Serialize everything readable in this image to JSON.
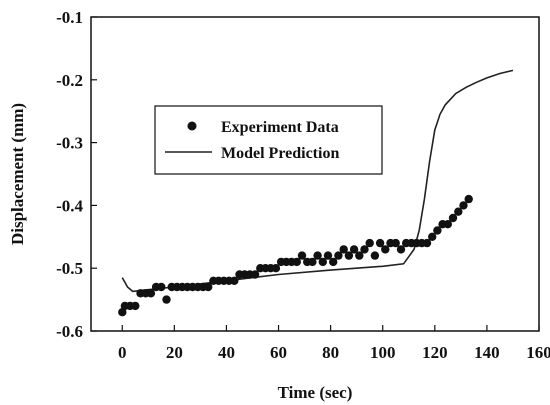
{
  "chart_data": {
    "type": "scatter",
    "title": "",
    "xlabel": "Time (sec)",
    "ylabel": "Displacement (mm)",
    "xlim": [
      -12,
      160
    ],
    "ylim": [
      -0.6,
      -0.1
    ],
    "x_ticks": [
      0,
      20,
      40,
      60,
      80,
      100,
      120,
      140,
      160
    ],
    "x_tick_labels": [
      "0",
      "20",
      "40",
      "60",
      "80",
      "100",
      "120",
      "140",
      "160"
    ],
    "y_ticks": [
      -0.1,
      -0.2,
      -0.3,
      -0.4,
      -0.5,
      -0.6
    ],
    "y_tick_labels": [
      "-0.1",
      "-0.2",
      "-0.3",
      "-0.4",
      "-0.5",
      "-0.6"
    ],
    "grid": false,
    "legend_position": "center-left",
    "series": [
      {
        "name": "Experiment Data",
        "kind": "scatter",
        "color": "#111111",
        "x": [
          0,
          1,
          3,
          5,
          7,
          9,
          11,
          13,
          15,
          17,
          19,
          21,
          23,
          25,
          27,
          29,
          31,
          33,
          35,
          37,
          39,
          41,
          43,
          45,
          47,
          49,
          51,
          53,
          55,
          57,
          59,
          61,
          63,
          65,
          67,
          69,
          71,
          73,
          75,
          77,
          79,
          81,
          83,
          85,
          87,
          89,
          91,
          93,
          95,
          97,
          99,
          101,
          103,
          105,
          107,
          109,
          111,
          113,
          115,
          117,
          119,
          121,
          123,
          125,
          127,
          129,
          131,
          133
        ],
        "y": [
          -0.57,
          -0.56,
          -0.56,
          -0.56,
          -0.54,
          -0.54,
          -0.54,
          -0.53,
          -0.53,
          -0.55,
          -0.53,
          -0.53,
          -0.53,
          -0.53,
          -0.53,
          -0.53,
          -0.53,
          -0.53,
          -0.52,
          -0.52,
          -0.52,
          -0.52,
          -0.52,
          -0.51,
          -0.51,
          -0.51,
          -0.51,
          -0.5,
          -0.5,
          -0.5,
          -0.5,
          -0.49,
          -0.49,
          -0.49,
          -0.49,
          -0.48,
          -0.49,
          -0.49,
          -0.48,
          -0.49,
          -0.48,
          -0.49,
          -0.48,
          -0.47,
          -0.48,
          -0.47,
          -0.48,
          -0.47,
          -0.46,
          -0.48,
          -0.46,
          -0.47,
          -0.46,
          -0.46,
          -0.47,
          -0.46,
          -0.46,
          -0.46,
          -0.46,
          -0.46,
          -0.45,
          -0.44,
          -0.43,
          -0.43,
          -0.42,
          -0.41,
          -0.4,
          -0.39
        ]
      },
      {
        "name": "Model Prediction",
        "kind": "line",
        "color": "#222222",
        "x": [
          0,
          2,
          4,
          8,
          20,
          40,
          60,
          80,
          100,
          108,
          112,
          114,
          116,
          118,
          120,
          122,
          124,
          128,
          132,
          136,
          140,
          145,
          150
        ],
        "y": [
          -0.515,
          -0.53,
          -0.537,
          -0.535,
          -0.53,
          -0.52,
          -0.51,
          -0.503,
          -0.497,
          -0.493,
          -0.47,
          -0.44,
          -0.39,
          -0.33,
          -0.28,
          -0.255,
          -0.24,
          -0.222,
          -0.212,
          -0.204,
          -0.197,
          -0.19,
          -0.185
        ]
      }
    ]
  }
}
